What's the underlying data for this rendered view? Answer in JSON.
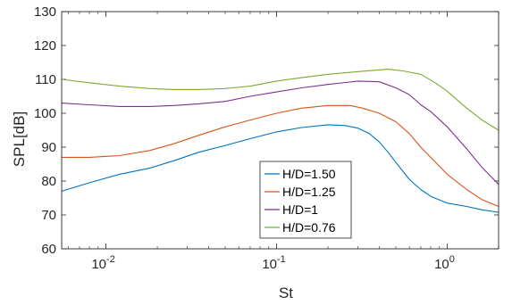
{
  "chart_data": {
    "type": "line",
    "title": "",
    "xlabel": "St",
    "ylabel": "SPL[dB]",
    "xscale": "log",
    "xlim": [
      0.0055,
      2.0
    ],
    "ylim": [
      60,
      130
    ],
    "yticks": [
      60,
      70,
      80,
      90,
      100,
      110,
      120,
      130
    ],
    "yticklabels": [
      "60",
      "70",
      "80",
      "90",
      "100",
      "110",
      "120",
      "130"
    ],
    "xticks": [
      {
        "value": 0.01,
        "base": "10",
        "exp": "-2"
      },
      {
        "value": 0.1,
        "base": "10",
        "exp": "-1"
      },
      {
        "value": 1,
        "base": "10",
        "exp": "0"
      }
    ],
    "grid": false,
    "legend_position": "lower-center",
    "series": [
      {
        "name": "H/D=1.50",
        "color": "#0072BD",
        "points": [
          [
            0.0055,
            77.0
          ],
          [
            0.008,
            79.5
          ],
          [
            0.012,
            82.0
          ],
          [
            0.018,
            83.8
          ],
          [
            0.025,
            86.0
          ],
          [
            0.035,
            88.5
          ],
          [
            0.05,
            90.5
          ],
          [
            0.07,
            92.5
          ],
          [
            0.1,
            94.5
          ],
          [
            0.14,
            95.8
          ],
          [
            0.2,
            96.6
          ],
          [
            0.25,
            96.4
          ],
          [
            0.3,
            95.6
          ],
          [
            0.35,
            94.0
          ],
          [
            0.4,
            91.5
          ],
          [
            0.45,
            88.5
          ],
          [
            0.5,
            85.5
          ],
          [
            0.6,
            80.5
          ],
          [
            0.7,
            77.5
          ],
          [
            0.8,
            75.5
          ],
          [
            1.0,
            73.5
          ],
          [
            1.3,
            72.5
          ],
          [
            1.6,
            71.5
          ],
          [
            2.0,
            70.8
          ]
        ]
      },
      {
        "name": "H/D=1.25",
        "color": "#D95319",
        "points": [
          [
            0.0055,
            87.0
          ],
          [
            0.008,
            87.0
          ],
          [
            0.012,
            87.5
          ],
          [
            0.018,
            89.0
          ],
          [
            0.025,
            91.0
          ],
          [
            0.035,
            93.5
          ],
          [
            0.05,
            96.0
          ],
          [
            0.07,
            98.0
          ],
          [
            0.1,
            100.0
          ],
          [
            0.14,
            101.5
          ],
          [
            0.2,
            102.3
          ],
          [
            0.27,
            102.3
          ],
          [
            0.32,
            101.5
          ],
          [
            0.4,
            100.0
          ],
          [
            0.5,
            97.5
          ],
          [
            0.6,
            94.0
          ],
          [
            0.7,
            90.0
          ],
          [
            0.8,
            87.0
          ],
          [
            1.0,
            82.0
          ],
          [
            1.3,
            77.5
          ],
          [
            1.6,
            74.5
          ],
          [
            2.0,
            72.5
          ]
        ]
      },
      {
        "name": "H/D=1",
        "color": "#7E2F8E",
        "points": [
          [
            0.0055,
            103.0
          ],
          [
            0.008,
            102.5
          ],
          [
            0.012,
            102.0
          ],
          [
            0.018,
            102.0
          ],
          [
            0.025,
            102.3
          ],
          [
            0.035,
            102.8
          ],
          [
            0.05,
            103.5
          ],
          [
            0.07,
            105.0
          ],
          [
            0.1,
            106.3
          ],
          [
            0.14,
            107.5
          ],
          [
            0.2,
            108.5
          ],
          [
            0.3,
            109.5
          ],
          [
            0.4,
            109.3
          ],
          [
            0.5,
            107.5
          ],
          [
            0.6,
            105.5
          ],
          [
            0.7,
            102.5
          ],
          [
            0.8,
            100.5
          ],
          [
            1.0,
            96.0
          ],
          [
            1.3,
            89.5
          ],
          [
            1.6,
            84.0
          ],
          [
            2.0,
            79.0
          ]
        ]
      },
      {
        "name": "H/D=0.76",
        "color": "#77AC30",
        "points": [
          [
            0.0055,
            110.0
          ],
          [
            0.008,
            109.0
          ],
          [
            0.012,
            108.0
          ],
          [
            0.018,
            107.3
          ],
          [
            0.025,
            107.0
          ],
          [
            0.035,
            107.0
          ],
          [
            0.05,
            107.3
          ],
          [
            0.07,
            108.0
          ],
          [
            0.1,
            109.5
          ],
          [
            0.14,
            110.5
          ],
          [
            0.2,
            111.5
          ],
          [
            0.3,
            112.3
          ],
          [
            0.45,
            113.0
          ],
          [
            0.55,
            112.5
          ],
          [
            0.7,
            111.5
          ],
          [
            0.85,
            109.0
          ],
          [
            1.0,
            106.5
          ],
          [
            1.3,
            101.5
          ],
          [
            1.6,
            98.0
          ],
          [
            2.0,
            95.0
          ]
        ]
      }
    ]
  }
}
